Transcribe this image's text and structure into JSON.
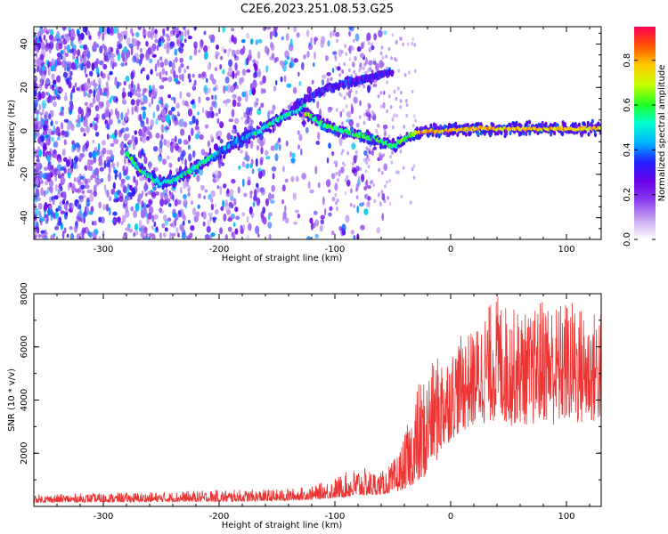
{
  "title": "C2E6.2023.251.08.53.G25",
  "chart_data": [
    {
      "type": "heatmap",
      "xlabel": "Height of straight line (km)",
      "ylabel": "Frequency (Hz)",
      "xlim": [
        -360,
        130
      ],
      "ylim": [
        -50,
        48
      ],
      "xticks": [
        "-300",
        "-200",
        "-100",
        "0",
        "100"
      ],
      "yticks": [
        "40",
        "20",
        "0",
        "-20",
        "-40"
      ],
      "grid": false,
      "colorbar": {
        "label": "Normalized spectral amplitude",
        "range": [
          0,
          0.95
        ],
        "ticks": [
          "0.0",
          "0.2",
          "0.4",
          "0.6",
          "0.8"
        ],
        "colormap": [
          "#ffffff",
          "#c9a8f0",
          "#8b3ff0",
          "#6a00e8",
          "#2020ff",
          "#00b4ff",
          "#00ffd0",
          "#22ff22",
          "#c8ff00",
          "#ffcc00",
          "#ff5500",
          "#ff0055"
        ]
      },
      "traces": [
        {
          "shape": "curved track descending from (-280, -10) to a minimum near (-250, -24), rising through (-200, -10) and (-150, 5) to about (-130, 10)",
          "points": [
            [
              -280,
              -10
            ],
            [
              -270,
              -17
            ],
            [
              -260,
              -21
            ],
            [
              -250,
              -24
            ],
            [
              -240,
              -23
            ],
            [
              -230,
              -20
            ],
            [
              -215,
              -15
            ],
            [
              -200,
              -10
            ],
            [
              -185,
              -5
            ],
            [
              -165,
              0
            ],
            [
              -150,
              5
            ],
            [
              -135,
              9
            ],
            [
              -125,
              12
            ]
          ]
        },
        {
          "shape": "faint upper branch continuing from (-130, 10) to about (-60, 27)",
          "points": [
            [
              -135,
              11
            ],
            [
              -120,
              16
            ],
            [
              -105,
              20
            ],
            [
              -90,
              22
            ],
            [
              -75,
              24
            ],
            [
              -60,
              26
            ],
            [
              -50,
              27
            ]
          ]
        },
        {
          "shape": "strong lower branch from (-120, 8) dropping to about (-50, -7) then flat near 0 to 1 Hz up to x = 130",
          "points": [
            [
              -125,
              8
            ],
            [
              -110,
              3
            ],
            [
              -95,
              0
            ],
            [
              -80,
              -2
            ],
            [
              -65,
              -4
            ],
            [
              -50,
              -7
            ],
            [
              -40,
              -4
            ],
            [
              -30,
              -1
            ],
            [
              -15,
              0
            ],
            [
              0,
              0.5
            ],
            [
              25,
              1
            ],
            [
              50,
              1
            ],
            [
              75,
              1
            ],
            [
              100,
              1
            ],
            [
              130,
              1
            ]
          ]
        }
      ]
    },
    {
      "type": "line",
      "xlabel": "Height of straight line (km)",
      "ylabel": "SNR (10 * v/v)",
      "xlim": [
        -360,
        130
      ],
      "ylim": [
        0,
        8000
      ],
      "xticks": [
        "-300",
        "-200",
        "-100",
        "0",
        "100"
      ],
      "yticks": [
        "8000",
        "6000",
        "4000",
        "2000"
      ],
      "grid": false,
      "color": "#ee3333",
      "envelope": {
        "x": [
          -360,
          -300,
          -250,
          -200,
          -150,
          -120,
          -100,
          -80,
          -60,
          -50,
          -40,
          -30,
          -20,
          -10,
          0,
          10,
          20,
          30,
          40,
          50,
          60,
          70,
          80,
          90,
          100,
          110,
          120,
          130
        ],
        "y_low": [
          150,
          160,
          170,
          180,
          200,
          260,
          320,
          400,
          450,
          520,
          650,
          900,
          1200,
          1800,
          2500,
          2800,
          3000,
          3100,
          3200,
          3000,
          3100,
          3000,
          3200,
          3000,
          3100,
          3000,
          3100,
          3100
        ],
        "y_high": [
          450,
          500,
          550,
          620,
          650,
          750,
          1100,
          1500,
          1300,
          1700,
          2600,
          4600,
          5200,
          5700,
          5800,
          6500,
          6600,
          7400,
          8000,
          7500,
          7400,
          7200,
          8000,
          7600,
          7800,
          7700,
          7200,
          7600
        ]
      }
    }
  ]
}
